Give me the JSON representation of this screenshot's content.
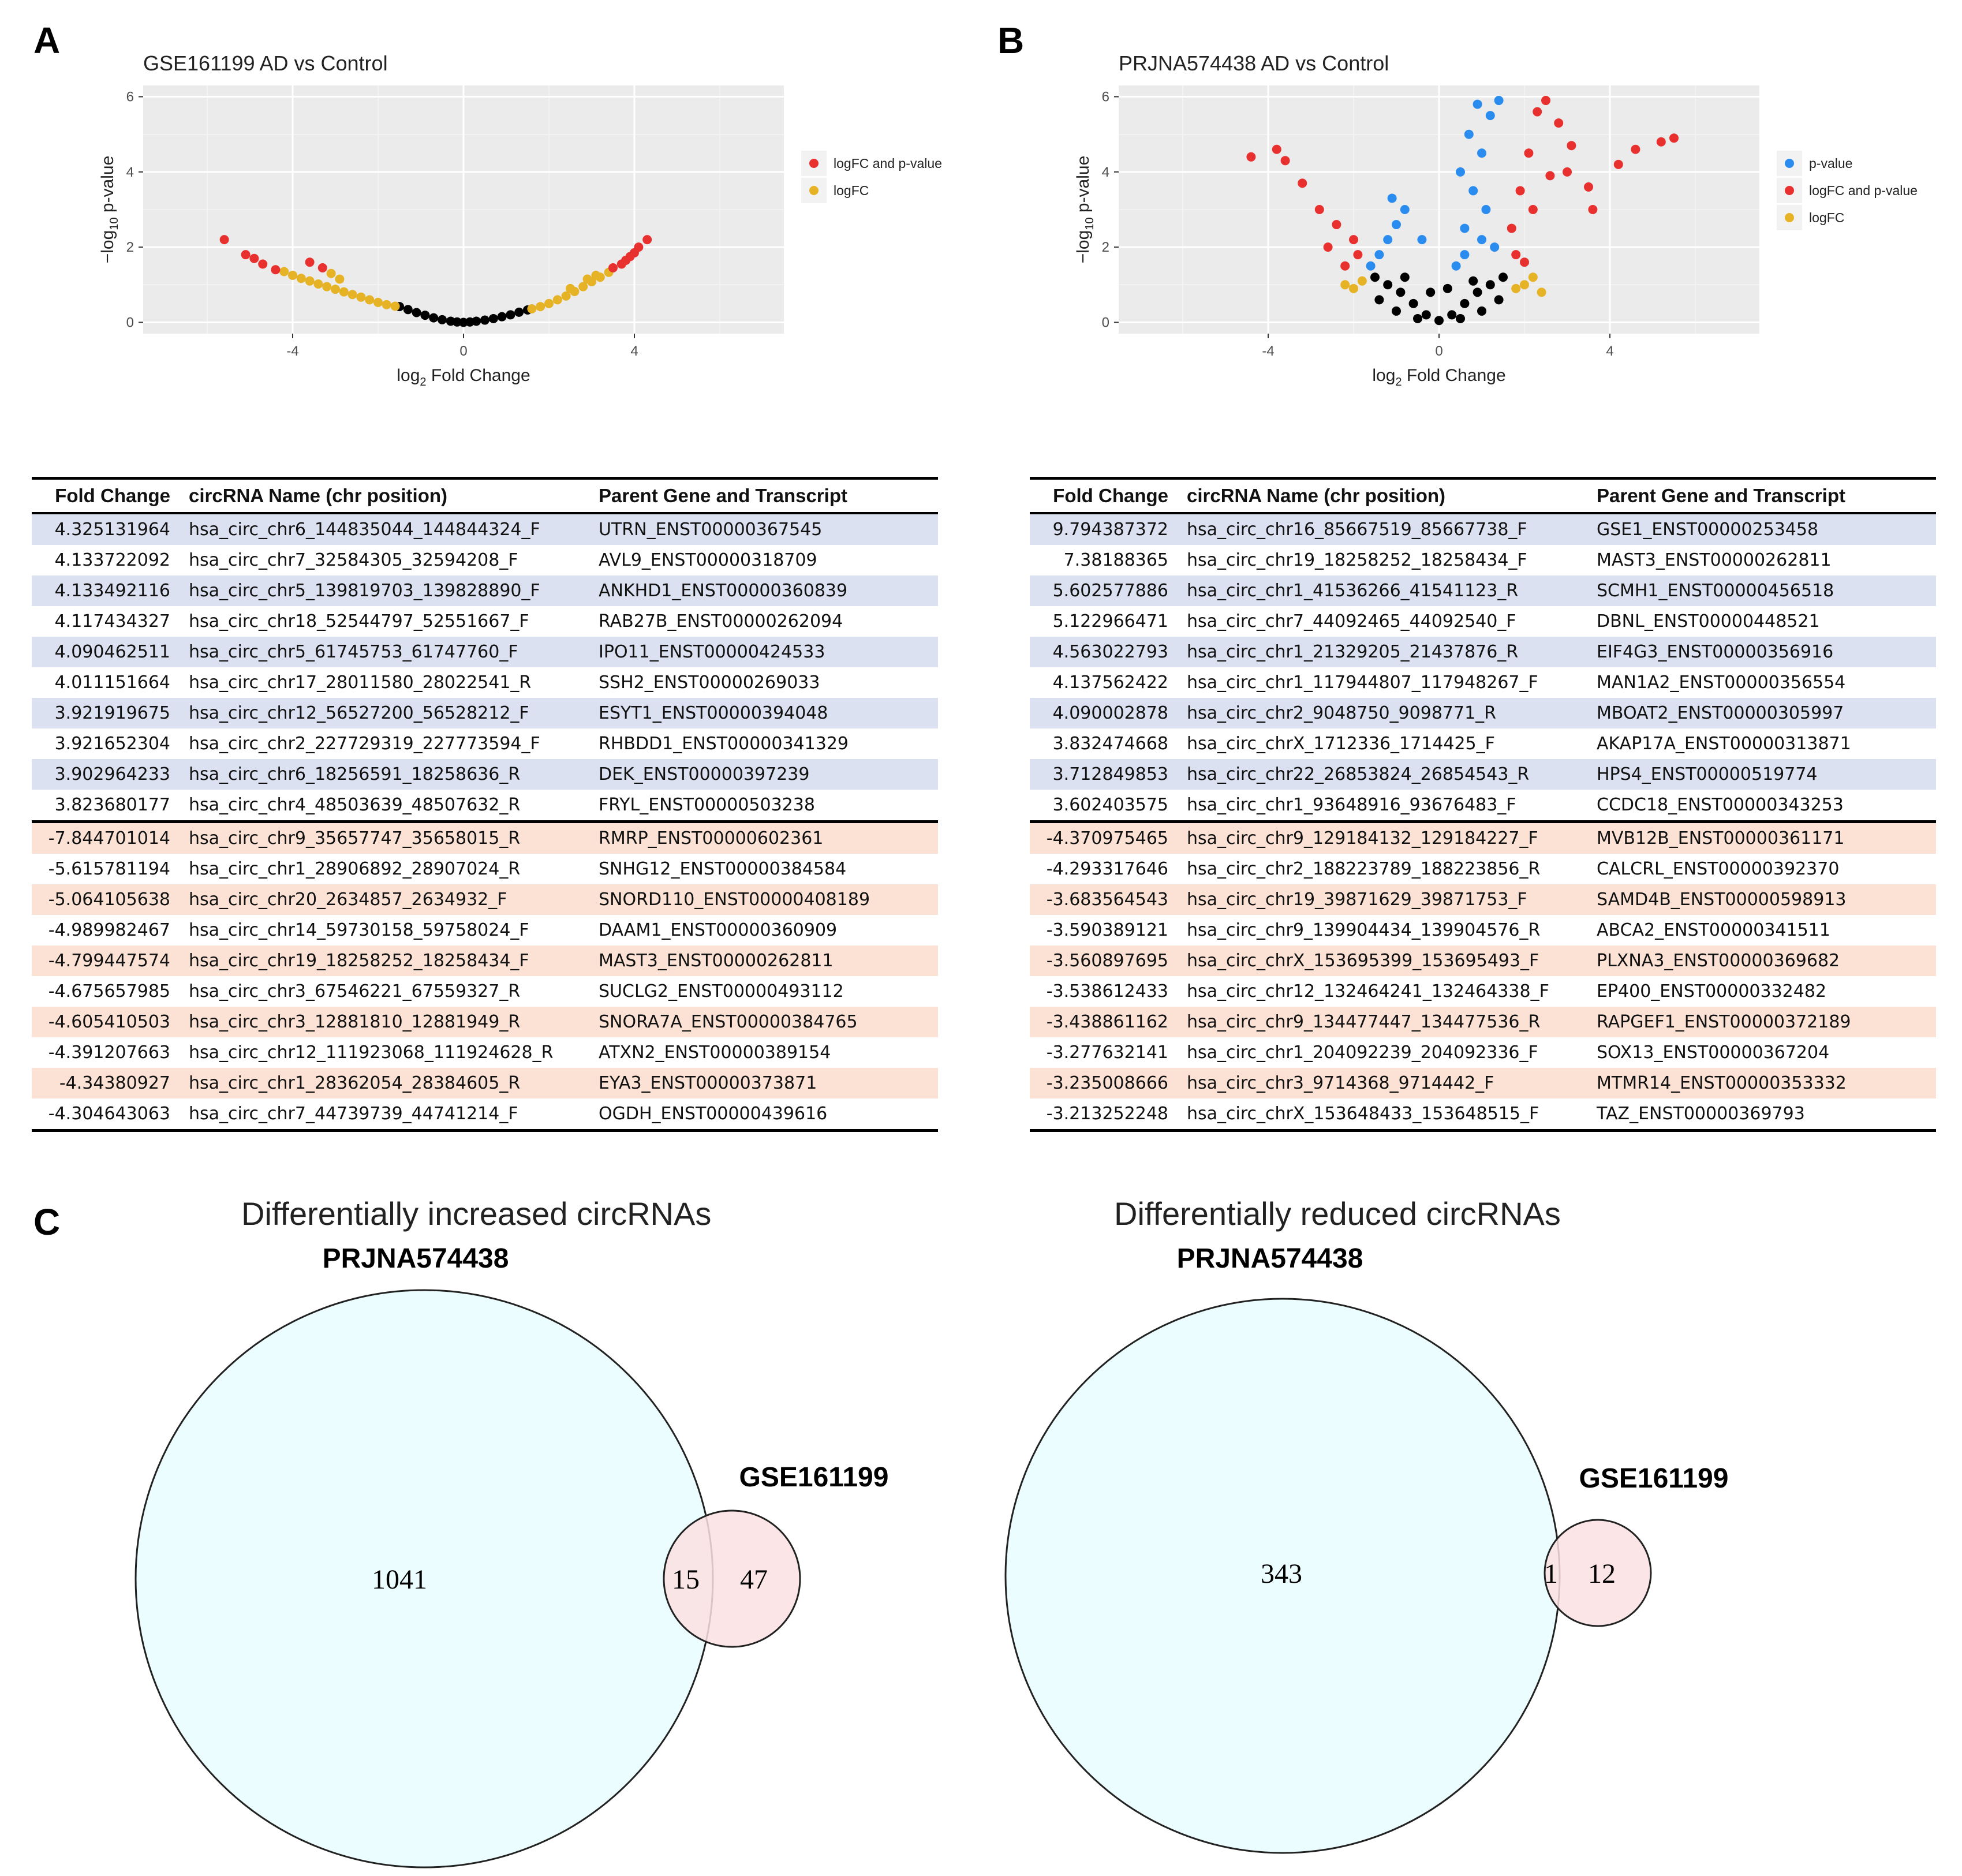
{
  "panels": {
    "a": "A",
    "b": "B",
    "c": "C"
  },
  "chart_data": [
    {
      "type": "scatter",
      "chart_id": "volcano-a",
      "title": "GSE161199 AD vs Control",
      "xlabel_parts": [
        "log",
        "2",
        " Fold Change"
      ],
      "ylabel_parts": [
        "−log",
        "10",
        " p-value"
      ],
      "xlim": [
        -7.5,
        7.5
      ],
      "ylim": [
        -0.3,
        6.3
      ],
      "xticks": [
        -4,
        0,
        4
      ],
      "xtick_labels": [
        "-4",
        "0",
        "4"
      ],
      "yticks": [
        0,
        2,
        4,
        6
      ],
      "ytick_labels": [
        "0",
        "2",
        "4",
        "6"
      ],
      "grid": true,
      "legend_position": "right",
      "legend": [
        {
          "key": "both",
          "label": "logFC and p-value",
          "color": "#e8302f"
        },
        {
          "key": "logfc",
          "label": "logFC",
          "color": "#e7b326"
        }
      ],
      "series": [
        {
          "name": "ns",
          "color": "#000000",
          "x": [
            -1.5,
            -1.3,
            -1.1,
            -0.9,
            -0.7,
            -0.5,
            -0.3,
            -0.15,
            0,
            0.15,
            0.3,
            0.5,
            0.7,
            0.9,
            1.1,
            1.3,
            1.5
          ],
          "y": [
            0.42,
            0.34,
            0.26,
            0.19,
            0.12,
            0.07,
            0.03,
            0.01,
            0,
            0.01,
            0.03,
            0.06,
            0.1,
            0.15,
            0.2,
            0.27,
            0.33
          ]
        },
        {
          "name": "logFC",
          "color": "#e7b326",
          "x": [
            -4.2,
            -4.0,
            -3.8,
            -3.6,
            -3.4,
            -3.2,
            -3.0,
            -2.8,
            -2.6,
            -2.4,
            -2.2,
            -2.0,
            -1.8,
            -1.6,
            -3.1,
            -2.9,
            1.6,
            1.8,
            2.0,
            2.2,
            2.4,
            2.6,
            2.8,
            3.0,
            3.2,
            3.4,
            2.5,
            2.9,
            3.1
          ],
          "y": [
            1.35,
            1.25,
            1.17,
            1.1,
            1.02,
            0.95,
            0.88,
            0.81,
            0.74,
            0.67,
            0.6,
            0.53,
            0.47,
            0.43,
            1.3,
            1.15,
            0.36,
            0.42,
            0.5,
            0.6,
            0.7,
            0.82,
            0.95,
            1.08,
            1.2,
            1.33,
            0.9,
            1.15,
            1.25
          ]
        },
        {
          "name": "logFC and p-value",
          "color": "#e8302f",
          "x": [
            -5.6,
            -5.1,
            -4.9,
            -4.7,
            -4.4,
            -3.6,
            -3.3,
            3.5,
            3.7,
            3.8,
            3.9,
            4.0,
            4.1,
            4.3
          ],
          "y": [
            2.2,
            1.8,
            1.7,
            1.55,
            1.4,
            1.6,
            1.45,
            1.45,
            1.55,
            1.65,
            1.75,
            1.85,
            2.0,
            2.2
          ]
        }
      ]
    },
    {
      "type": "scatter",
      "chart_id": "volcano-b",
      "title": "PRJNA574438 AD vs Control",
      "xlabel_parts": [
        "log",
        "2",
        " Fold Change"
      ],
      "ylabel_parts": [
        "−log",
        "10",
        " p-value"
      ],
      "xlim": [
        -7.5,
        7.5
      ],
      "ylim": [
        -0.3,
        6.3
      ],
      "xticks": [
        -4,
        0,
        4
      ],
      "xtick_labels": [
        "-4",
        "0",
        "4"
      ],
      "yticks": [
        0,
        2,
        4,
        6
      ],
      "ytick_labels": [
        "0",
        "2",
        "4",
        "6"
      ],
      "grid": true,
      "legend_position": "right",
      "legend": [
        {
          "key": "pval",
          "label": "p-value",
          "color": "#2b8cef"
        },
        {
          "key": "both",
          "label": "logFC and p-value",
          "color": "#e8302f"
        },
        {
          "key": "logfc",
          "label": "logFC",
          "color": "#e7b326"
        }
      ],
      "series": [
        {
          "name": "ns",
          "color": "#000000",
          "x": [
            -1.5,
            -1.2,
            -0.9,
            -0.6,
            -0.3,
            0,
            0.3,
            0.6,
            0.9,
            1.2,
            1.5,
            -1.4,
            -1.0,
            -0.5,
            0.5,
            1.0,
            1.4,
            -0.2,
            0.2,
            -0.8,
            0.8
          ],
          "y": [
            1.2,
            1.0,
            0.8,
            0.5,
            0.2,
            0.05,
            0.2,
            0.5,
            0.8,
            1.0,
            1.2,
            0.6,
            0.3,
            0.1,
            0.1,
            0.3,
            0.6,
            0.8,
            0.9,
            1.2,
            1.1
          ]
        },
        {
          "name": "logFC",
          "color": "#e7b326",
          "x": [
            -2.2,
            -2.0,
            -1.8,
            1.8,
            2.0,
            2.2,
            2.4
          ],
          "y": [
            1.0,
            0.9,
            1.1,
            0.9,
            1.0,
            1.2,
            0.8
          ]
        },
        {
          "name": "p-value",
          "color": "#2b8cef",
          "x": [
            -1.6,
            -1.4,
            -1.2,
            -1.0,
            -0.8,
            -0.4,
            0.4,
            0.6,
            0.8,
            1.0,
            1.2,
            1.4,
            0.5,
            0.7,
            0.9,
            1.1,
            1.3,
            0.6,
            1.0,
            -1.1
          ],
          "y": [
            1.5,
            1.8,
            2.2,
            2.6,
            3.0,
            2.2,
            1.5,
            2.5,
            3.5,
            4.5,
            5.5,
            5.9,
            4.0,
            5.0,
            5.8,
            3.0,
            2.0,
            1.8,
            2.2,
            3.3
          ]
        },
        {
          "name": "logFC and p-value",
          "color": "#e8302f",
          "x": [
            -4.4,
            -3.8,
            -3.6,
            -3.2,
            -2.8,
            -2.4,
            -2.0,
            -1.9,
            -2.2,
            -2.6,
            1.7,
            1.9,
            2.1,
            2.3,
            2.5,
            2.8,
            3.1,
            3.5,
            4.2,
            4.6,
            5.2,
            5.5,
            1.8,
            2.0,
            2.2,
            2.6,
            3.0,
            3.6
          ],
          "y": [
            4.4,
            4.6,
            4.3,
            3.7,
            3.0,
            2.6,
            2.2,
            1.8,
            1.5,
            2.0,
            2.5,
            3.5,
            4.5,
            5.6,
            5.9,
            5.3,
            4.7,
            3.6,
            4.2,
            4.6,
            4.8,
            4.9,
            1.8,
            1.6,
            3.0,
            3.9,
            4.0,
            3.0
          ]
        }
      ]
    }
  ],
  "tables": {
    "headers": [
      "Fold Change",
      "circRNA Name (chr position)",
      "Parent Gene and Transcript"
    ],
    "a_rows": [
      [
        "4.325131964",
        "hsa_circ_chr6_144835044_144844324_F",
        "UTRN_ENST00000367545"
      ],
      [
        "4.133722092",
        "hsa_circ_chr7_32584305_32594208_F",
        "AVL9_ENST00000318709"
      ],
      [
        "4.133492116",
        "hsa_circ_chr5_139819703_139828890_F",
        "ANKHD1_ENST00000360839"
      ],
      [
        "4.117434327",
        "hsa_circ_chr18_52544797_52551667_F",
        "RAB27B_ENST00000262094"
      ],
      [
        "4.090462511",
        "hsa_circ_chr5_61745753_61747760_F",
        "IPO11_ENST00000424533"
      ],
      [
        "4.011151664",
        "hsa_circ_chr17_28011580_28022541_R",
        "SSH2_ENST00000269033"
      ],
      [
        "3.921919675",
        "hsa_circ_chr12_56527200_56528212_F",
        "ESYT1_ENST00000394048"
      ],
      [
        "3.921652304",
        "hsa_circ_chr2_227729319_227773594_F",
        "RHBDD1_ENST00000341329"
      ],
      [
        "3.902964233",
        "hsa_circ_chr6_18256591_18258636_R",
        "DEK_ENST00000397239"
      ],
      [
        "3.823680177",
        "hsa_circ_chr4_48503639_48507632_R",
        "FRYL_ENST00000503238"
      ],
      [
        "-7.844701014",
        "hsa_circ_chr9_35657747_35658015_R",
        "RMRP_ENST00000602361"
      ],
      [
        "-5.615781194",
        "hsa_circ_chr1_28906892_28907024_R",
        "SNHG12_ENST00000384584"
      ],
      [
        "-5.064105638",
        "hsa_circ_chr20_2634857_2634932_F",
        "SNORD110_ENST00000408189"
      ],
      [
        "-4.989982467",
        "hsa_circ_chr14_59730158_59758024_F",
        "DAAM1_ENST00000360909"
      ],
      [
        "-4.799447574",
        "hsa_circ_chr19_18258252_18258434_F",
        "MAST3_ENST00000262811"
      ],
      [
        "-4.675657985",
        "hsa_circ_chr3_67546221_67559327_R",
        "SUCLG2_ENST00000493112"
      ],
      [
        "-4.605410503",
        "hsa_circ_chr3_12881810_12881949_R",
        "SNORA7A_ENST00000384765"
      ],
      [
        "-4.391207663",
        "hsa_circ_chr12_111923068_111924628_R",
        "ATXN2_ENST00000389154"
      ],
      [
        "-4.34380927",
        "hsa_circ_chr1_28362054_28384605_R",
        "EYA3_ENST00000373871"
      ],
      [
        "-4.304643063",
        "hsa_circ_chr7_44739739_44741214_F",
        "OGDH_ENST00000439616"
      ]
    ],
    "b_rows": [
      [
        "9.794387372",
        "hsa_circ_chr16_85667519_85667738_F",
        "GSE1_ENST00000253458"
      ],
      [
        "7.38188365",
        "hsa_circ_chr19_18258252_18258434_F",
        "MAST3_ENST00000262811"
      ],
      [
        "5.602577886",
        "hsa_circ_chr1_41536266_41541123_R",
        "SCMH1_ENST00000456518"
      ],
      [
        "5.122966471",
        "hsa_circ_chr7_44092465_44092540_F",
        "DBNL_ENST00000448521"
      ],
      [
        "4.563022793",
        "hsa_circ_chr1_21329205_21437876_R",
        "EIF4G3_ENST00000356916"
      ],
      [
        "4.137562422",
        "hsa_circ_chr1_117944807_117948267_F",
        "MAN1A2_ENST00000356554"
      ],
      [
        "4.090002878",
        "hsa_circ_chr2_9048750_9098771_R",
        "MBOAT2_ENST00000305997"
      ],
      [
        "3.832474668",
        "hsa_circ_chrX_1712336_1714425_F",
        "AKAP17A_ENST00000313871"
      ],
      [
        "3.712849853",
        "hsa_circ_chr22_26853824_26854543_R",
        "HPS4_ENST00000519774"
      ],
      [
        "3.602403575",
        "hsa_circ_chr1_93648916_93676483_F",
        "CCDC18_ENST00000343253"
      ],
      [
        "-4.370975465",
        "hsa_circ_chr9_129184132_129184227_F",
        "MVB12B_ENST00000361171"
      ],
      [
        "-4.293317646",
        "hsa_circ_chr2_188223789_188223856_R",
        "CALCRL_ENST00000392370"
      ],
      [
        "-3.683564543",
        "hsa_circ_chr19_39871629_39871753_F",
        "SAMD4B_ENST00000598913"
      ],
      [
        "-3.590389121",
        "hsa_circ_chr9_139904434_139904576_R",
        "ABCA2_ENST00000341511"
      ],
      [
        "-3.560897695",
        "hsa_circ_chrX_153695399_153695493_F",
        "PLXNA3_ENST00000369682"
      ],
      [
        "-3.538612433",
        "hsa_circ_chr12_132464241_132464338_F",
        "EP400_ENST00000332482"
      ],
      [
        "-3.438861162",
        "hsa_circ_chr9_134477447_134477536_R",
        "RAPGEF1_ENST00000372189"
      ],
      [
        "-3.277632141",
        "hsa_circ_chr1_204092239_204092336_F",
        "SOX13_ENST00000367204"
      ],
      [
        "-3.235008666",
        "hsa_circ_chr3_9714368_9714442_F",
        "MTMR14_ENST00000353332"
      ],
      [
        "-3.213252248",
        "hsa_circ_chrX_153648433_153648515_F",
        "TAZ_ENST00000369793"
      ]
    ]
  },
  "venn": {
    "increased": {
      "title": "Differentially increased circRNAs",
      "set_a": "PRJNA574438",
      "set_b": "GSE161199",
      "only_a": "1041",
      "both": "15",
      "only_b": "47"
    },
    "reduced": {
      "title": "Differentially reduced circRNAs",
      "set_a": "PRJNA574438",
      "set_b": "GSE161199",
      "only_a": "343",
      "both": "1",
      "only_b": "12"
    },
    "colors": {
      "set_a_fill": "#ebfdfe",
      "set_b_fill": "#fbe0e2",
      "stroke": "#222222"
    }
  }
}
